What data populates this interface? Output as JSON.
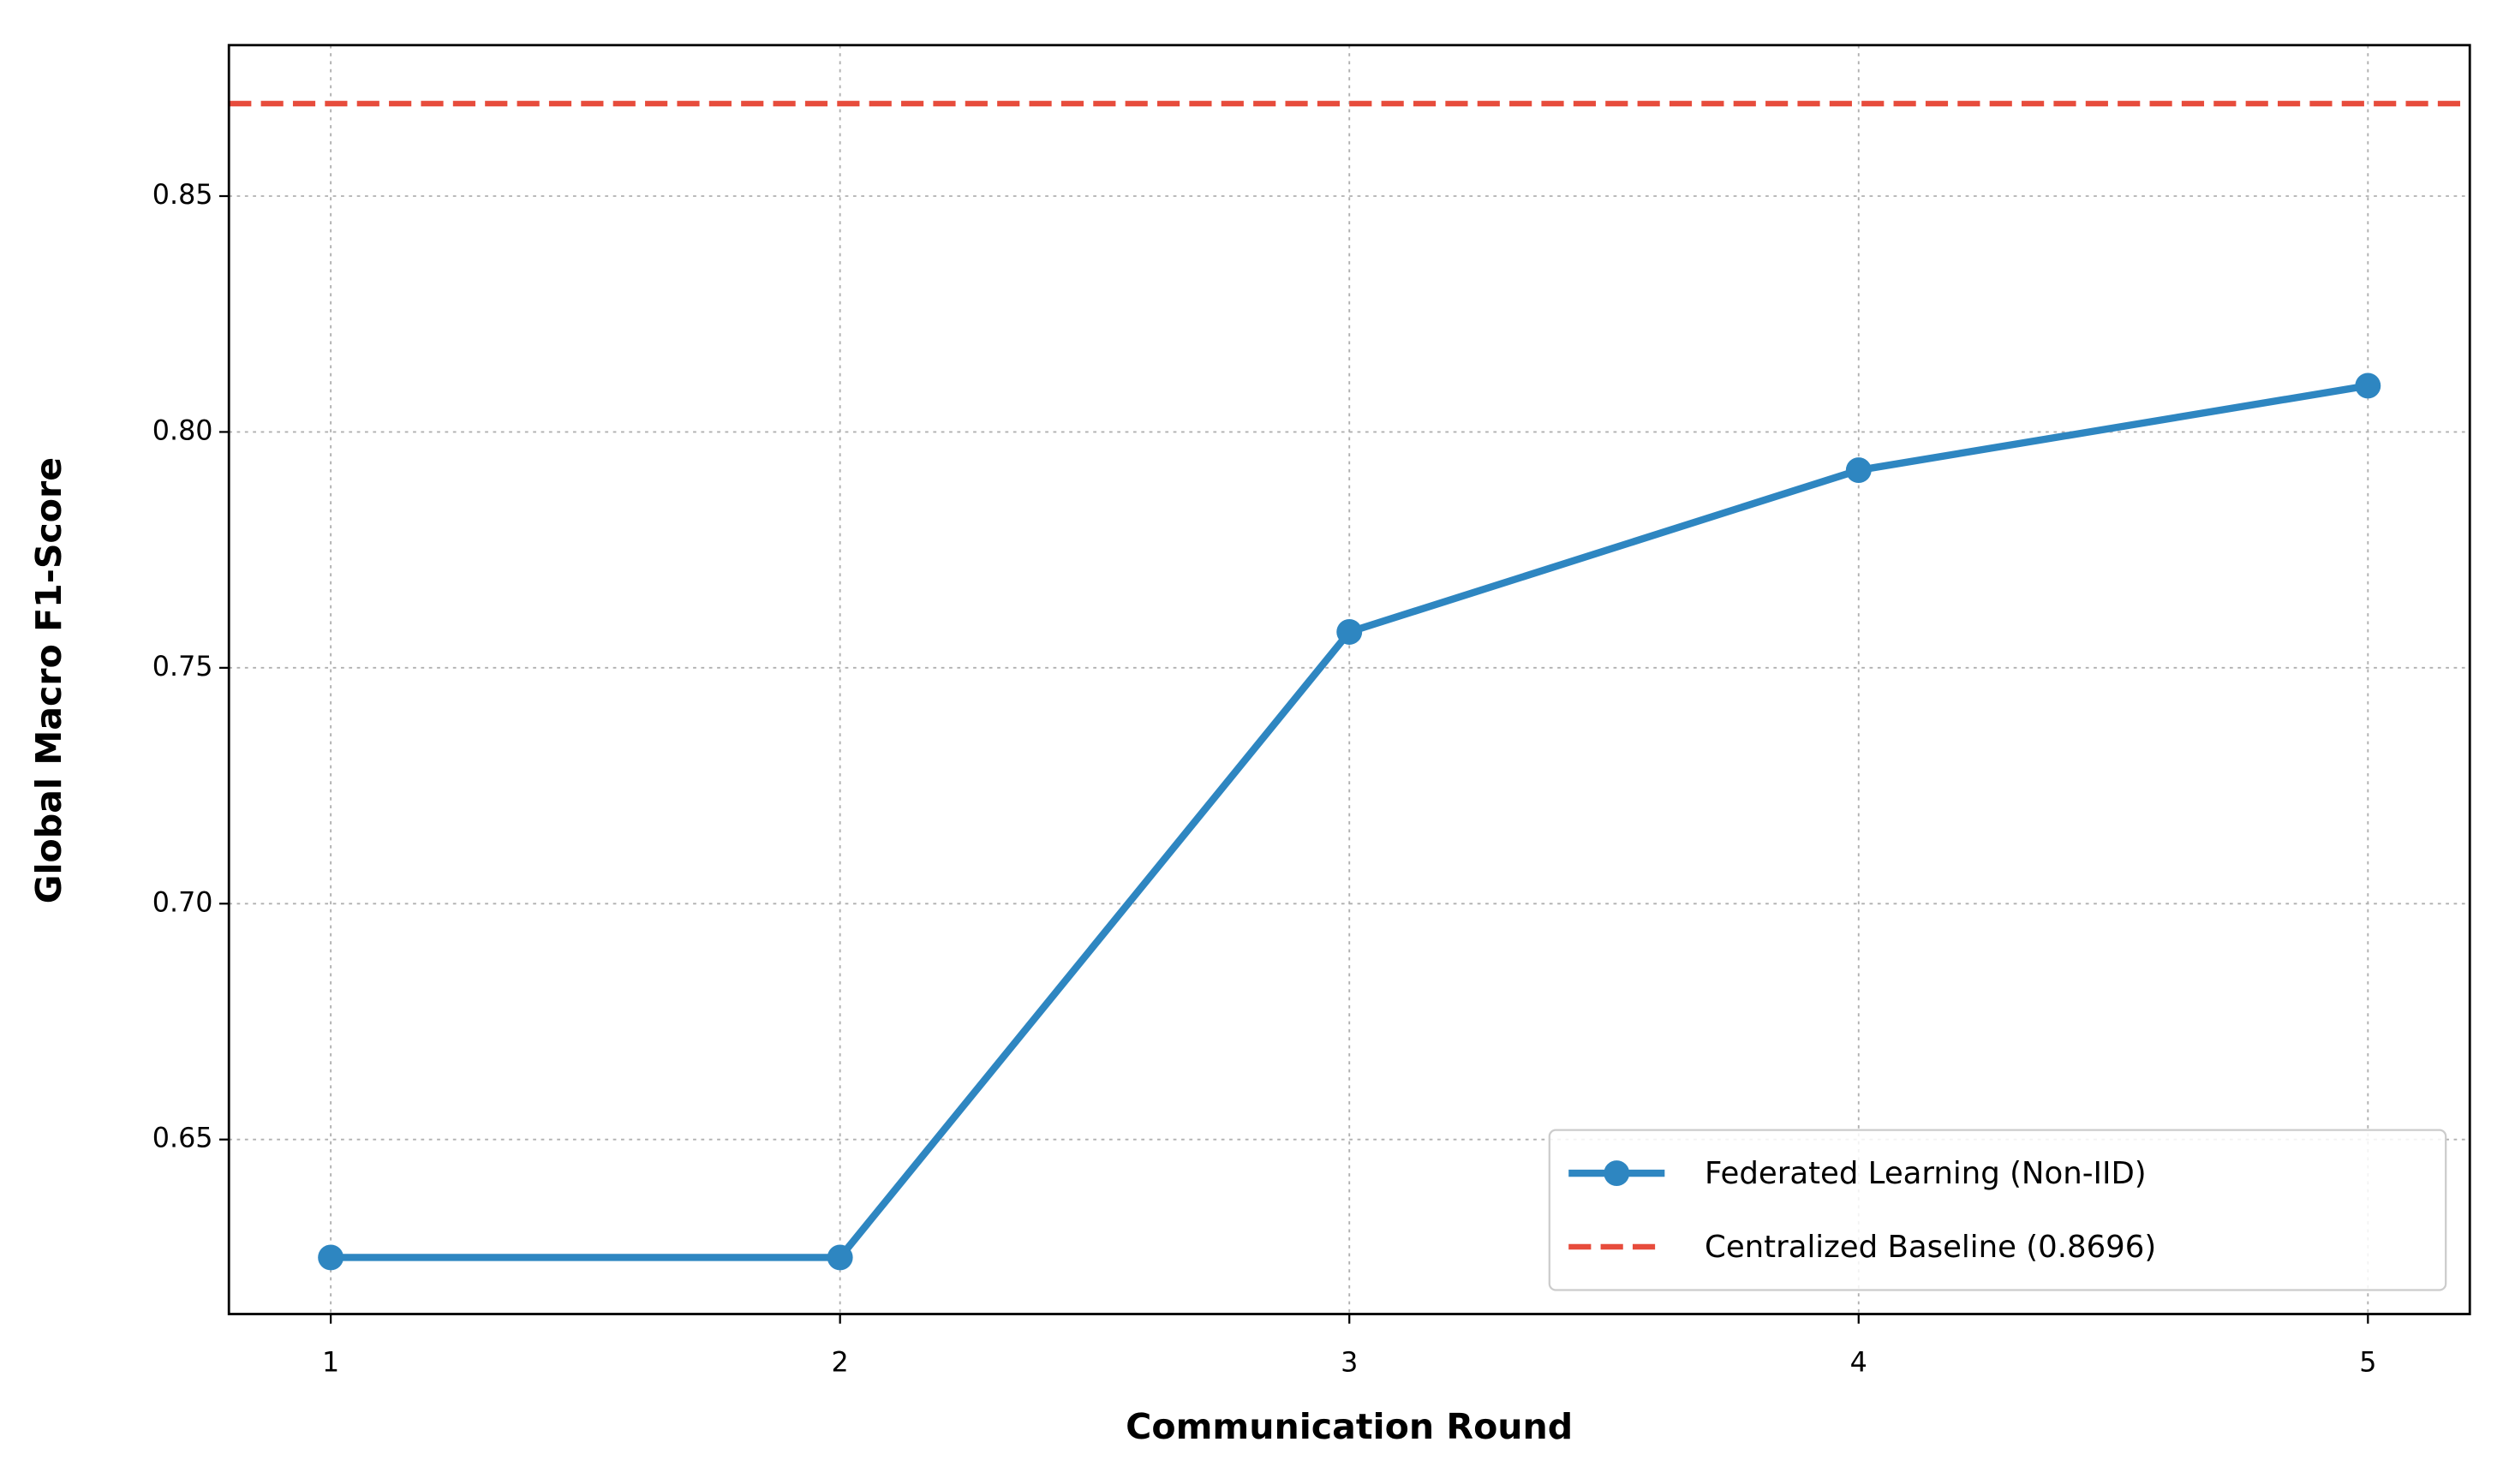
{
  "chart_data": {
    "type": "line",
    "xlabel": "Communication Round",
    "ylabel": "Global Macro F1-Score",
    "x": [
      1,
      2,
      3,
      4,
      5
    ],
    "series": [
      {
        "name": "Federated Learning (Non-IID)",
        "color": "#2e86c1",
        "values": [
          0.625,
          0.625,
          0.7576,
          0.7919,
          0.8098
        ]
      }
    ],
    "baseline": {
      "name": "Centralized Baseline (0.8696)",
      "color": "#e74c3c",
      "value": 0.8696
    },
    "xlim": [
      0.8,
      5.2
    ],
    "xticks": [
      1,
      2,
      3,
      4,
      5
    ],
    "ylim": [
      0.613,
      0.882
    ],
    "yticks": [
      0.65,
      {
        "value": 0.7,
        "label": "0.70"
      },
      0.75,
      {
        "value": 0.8,
        "label": "0.80"
      },
      0.85
    ],
    "grid": true,
    "legend": "lower right"
  }
}
